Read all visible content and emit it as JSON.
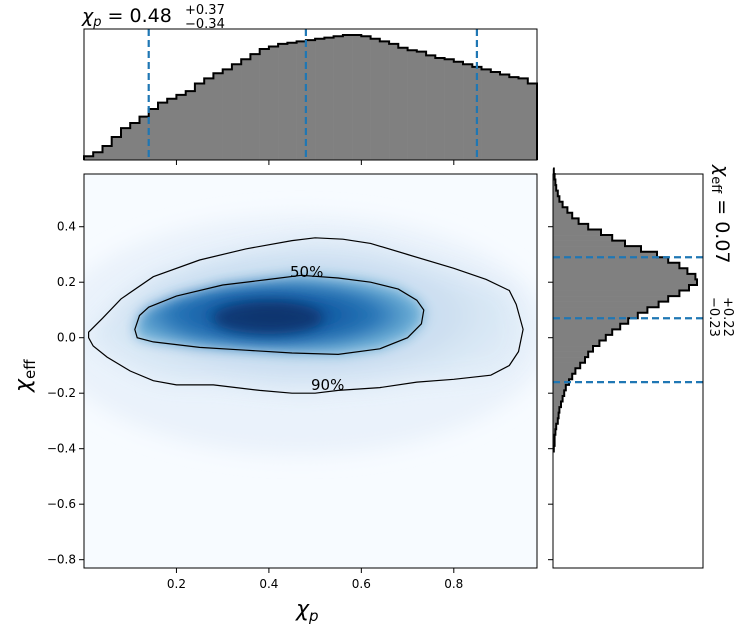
{
  "chart_data": {
    "type": "heatmap",
    "joint": {
      "x_var": "chi_p",
      "y_var": "chi_eff",
      "xlim": [
        0.0,
        0.98
      ],
      "ylim": [
        -0.83,
        0.59
      ],
      "x_ticks": [
        0.2,
        0.4,
        0.6,
        0.8
      ],
      "y_ticks": [
        -0.8,
        -0.6,
        -0.4,
        -0.2,
        0.0,
        0.2,
        0.4
      ],
      "x_tick_labels": [
        "0.2",
        "0.4",
        "0.6",
        "0.8"
      ],
      "y_tick_labels": [
        "−0.8",
        "−0.6",
        "−0.4",
        "−0.2",
        "0.0",
        "0.2",
        "0.4"
      ],
      "colormap": "Blues",
      "density_peak": [
        0.42,
        0.07
      ],
      "contours": [
        {
          "label": "50%",
          "level": 0.5,
          "points": [
            [
              0.11,
              0.03
            ],
            [
              0.12,
              0.08
            ],
            [
              0.14,
              0.11
            ],
            [
              0.2,
              0.15
            ],
            [
              0.3,
              0.19
            ],
            [
              0.4,
              0.21
            ],
            [
              0.47,
              0.225
            ],
            [
              0.55,
              0.215
            ],
            [
              0.62,
              0.2
            ],
            [
              0.68,
              0.175
            ],
            [
              0.72,
              0.135
            ],
            [
              0.735,
              0.1
            ],
            [
              0.73,
              0.05
            ],
            [
              0.7,
              0.0
            ],
            [
              0.64,
              -0.04
            ],
            [
              0.55,
              -0.06
            ],
            [
              0.45,
              -0.055
            ],
            [
              0.35,
              -0.045
            ],
            [
              0.25,
              -0.035
            ],
            [
              0.15,
              -0.015
            ],
            [
              0.115,
              0.0
            ]
          ]
        },
        {
          "label": "90%",
          "level": 0.9,
          "points": [
            [
              0.01,
              0.02
            ],
            [
              0.04,
              0.07
            ],
            [
              0.08,
              0.14
            ],
            [
              0.15,
              0.22
            ],
            [
              0.25,
              0.28
            ],
            [
              0.35,
              0.32
            ],
            [
              0.45,
              0.35
            ],
            [
              0.5,
              0.36
            ],
            [
              0.56,
              0.355
            ],
            [
              0.62,
              0.34
            ],
            [
              0.7,
              0.3
            ],
            [
              0.8,
              0.25
            ],
            [
              0.87,
              0.21
            ],
            [
              0.92,
              0.17
            ],
            [
              0.935,
              0.12
            ],
            [
              0.95,
              0.03
            ],
            [
              0.94,
              -0.05
            ],
            [
              0.92,
              -0.1
            ],
            [
              0.88,
              -0.135
            ],
            [
              0.8,
              -0.15
            ],
            [
              0.72,
              -0.16
            ],
            [
              0.64,
              -0.18
            ],
            [
              0.55,
              -0.19
            ],
            [
              0.5,
              -0.2
            ],
            [
              0.45,
              -0.2
            ],
            [
              0.38,
              -0.19
            ],
            [
              0.28,
              -0.17
            ],
            [
              0.2,
              -0.17
            ],
            [
              0.15,
              -0.155
            ],
            [
              0.1,
              -0.12
            ],
            [
              0.05,
              -0.07
            ],
            [
              0.02,
              -0.03
            ],
            [
              0.01,
              0.0
            ]
          ]
        }
      ]
    },
    "marginal_x": {
      "variable": "chi_p",
      "type": "histogram",
      "color": "#808080",
      "edge_color": "#000000",
      "bin_start": 0.0,
      "bin_width": 0.02,
      "heights": [
        3,
        6,
        11,
        18,
        25,
        29,
        34,
        40,
        45,
        48,
        51,
        54,
        60,
        64,
        68,
        71,
        75,
        79,
        83,
        87,
        89,
        91,
        92,
        93,
        94,
        95,
        96,
        97,
        98,
        98,
        97,
        95,
        93,
        91,
        88,
        86,
        85,
        82,
        80,
        79,
        77,
        75,
        73,
        71,
        69,
        67,
        65,
        64,
        60,
        58,
        56,
        53,
        49,
        46,
        41,
        36,
        31,
        25,
        21,
        17,
        14,
        10,
        7,
        4
      ],
      "quantile_lines": [
        0.14,
        0.48,
        0.85
      ],
      "quantile_line_color": "#1f77b4",
      "title": "χp = 0.48+0.37−0.34"
    },
    "marginal_y": {
      "variable": "chi_eff",
      "type": "histogram",
      "color": "#808080",
      "edge_color": "#000000",
      "bin_start": -0.41,
      "bin_width": 0.02,
      "widths": [
        0.5,
        1,
        1,
        1.5,
        2,
        3,
        3.5,
        4,
        5,
        6,
        7,
        8,
        10,
        12,
        14,
        17,
        20,
        22,
        25,
        29,
        33,
        37,
        42,
        47,
        53,
        59,
        66,
        72,
        79,
        85,
        90,
        89,
        84,
        79,
        72,
        65,
        55,
        45,
        37,
        30,
        22,
        16,
        12,
        9,
        6,
        4,
        3,
        2,
        1.5,
        1,
        0.5
      ],
      "quantile_lines": [
        -0.16,
        0.07,
        0.29
      ],
      "quantile_line_color": "#1f77b4",
      "title": "χeff = 0.07+0.22−0.23"
    },
    "labels": {
      "x_axis_symbol": "χ",
      "x_axis_sub": "p",
      "y_axis_symbol": "χ",
      "y_axis_sub": "eff",
      "top_title_symbol": "χ",
      "top_title_sub": "p",
      "top_title_value": " = 0.48",
      "top_title_plus": "+0.37",
      "top_title_minus": "−0.34",
      "right_title_symbol": "χ",
      "right_title_sub": "eff",
      "right_title_value": " = 0.07",
      "right_title_plus": "+0.22",
      "right_title_minus": "−0.23"
    }
  }
}
